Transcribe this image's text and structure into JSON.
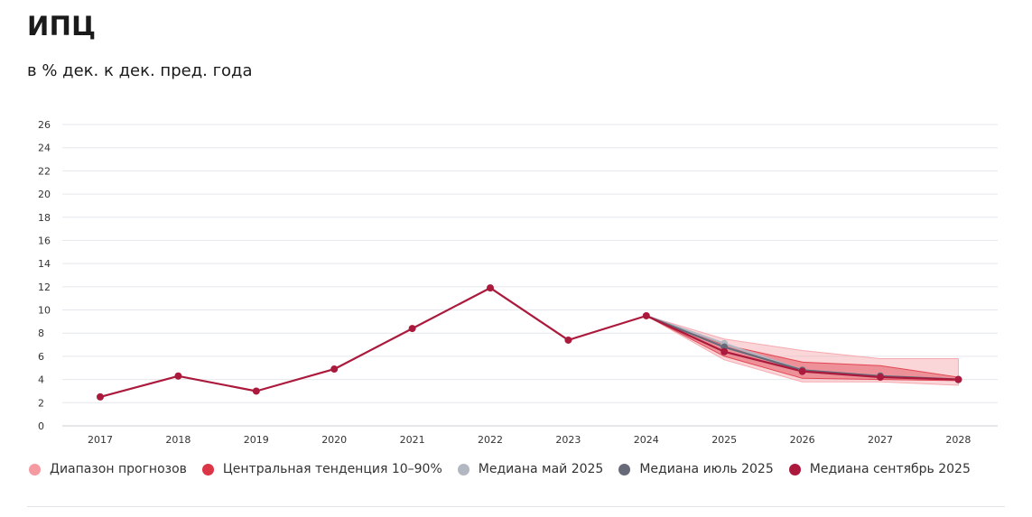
{
  "header": {
    "title": "ИПЦ",
    "subtitle": "в % дек. к дек. пред. года"
  },
  "chart_data": {
    "type": "line",
    "title": "ИПЦ",
    "subtitle": "в % дек. к дек. пред. года",
    "xlabel": "",
    "ylabel": "",
    "ylim": [
      0,
      26
    ],
    "yticks": [
      "0",
      "2",
      "4",
      "6",
      "8",
      "10",
      "12",
      "14",
      "16",
      "18",
      "20",
      "22",
      "24",
      "26"
    ],
    "categories": [
      "2017",
      "2018",
      "2019",
      "2020",
      "2021",
      "2022",
      "2023",
      "2024",
      "2025",
      "2026",
      "2027",
      "2028"
    ],
    "grid": true,
    "legend_position": "bottom",
    "series": [
      {
        "name": "Медиана сентябрь 2025",
        "color": "#ab1a3c",
        "values": [
          2.5,
          4.3,
          3.0,
          4.9,
          8.4,
          11.9,
          7.4,
          9.5,
          6.4,
          4.7,
          4.2,
          4.0
        ]
      },
      {
        "name": "Медиана июль 2025",
        "color": "#676a79",
        "values": [
          null,
          null,
          null,
          null,
          null,
          null,
          null,
          9.5,
          6.8,
          4.8,
          4.3,
          4.0
        ]
      },
      {
        "name": "Медиана май 2025",
        "color": "#b3b7c2",
        "values": [
          null,
          null,
          null,
          null,
          null,
          null,
          null,
          9.5,
          7.1,
          4.8,
          4.3,
          4.0
        ]
      }
    ],
    "bands": [
      {
        "name": "Диапазон прогнозов",
        "color": "#f5a3aa",
        "x": [
          "2024",
          "2025",
          "2026",
          "2027",
          "2028"
        ],
        "low": [
          9.5,
          5.7,
          3.8,
          3.8,
          3.5
        ],
        "high": [
          9.5,
          7.5,
          6.5,
          5.8,
          5.8
        ]
      },
      {
        "name": "Центральная тенденция 10-90%",
        "color": "#e03b48",
        "x": [
          "2024",
          "2025",
          "2026",
          "2027",
          "2028"
        ],
        "low": [
          9.5,
          6.0,
          4.1,
          4.0,
          3.9
        ],
        "high": [
          9.5,
          7.0,
          5.5,
          5.2,
          4.2
        ]
      }
    ]
  },
  "legend": {
    "items": [
      {
        "label": "Диапазон прогнозов",
        "color": "#f59aa0"
      },
      {
        "label": "Центральная тенденция 10–90%",
        "color": "#dc3545"
      },
      {
        "label": "Медиана май 2025",
        "color": "#b3b7c2"
      },
      {
        "label": "Медиана июль 2025",
        "color": "#676a79"
      },
      {
        "label": "Медиана сентябрь 2025",
        "color": "#ab1a3c"
      }
    ]
  }
}
